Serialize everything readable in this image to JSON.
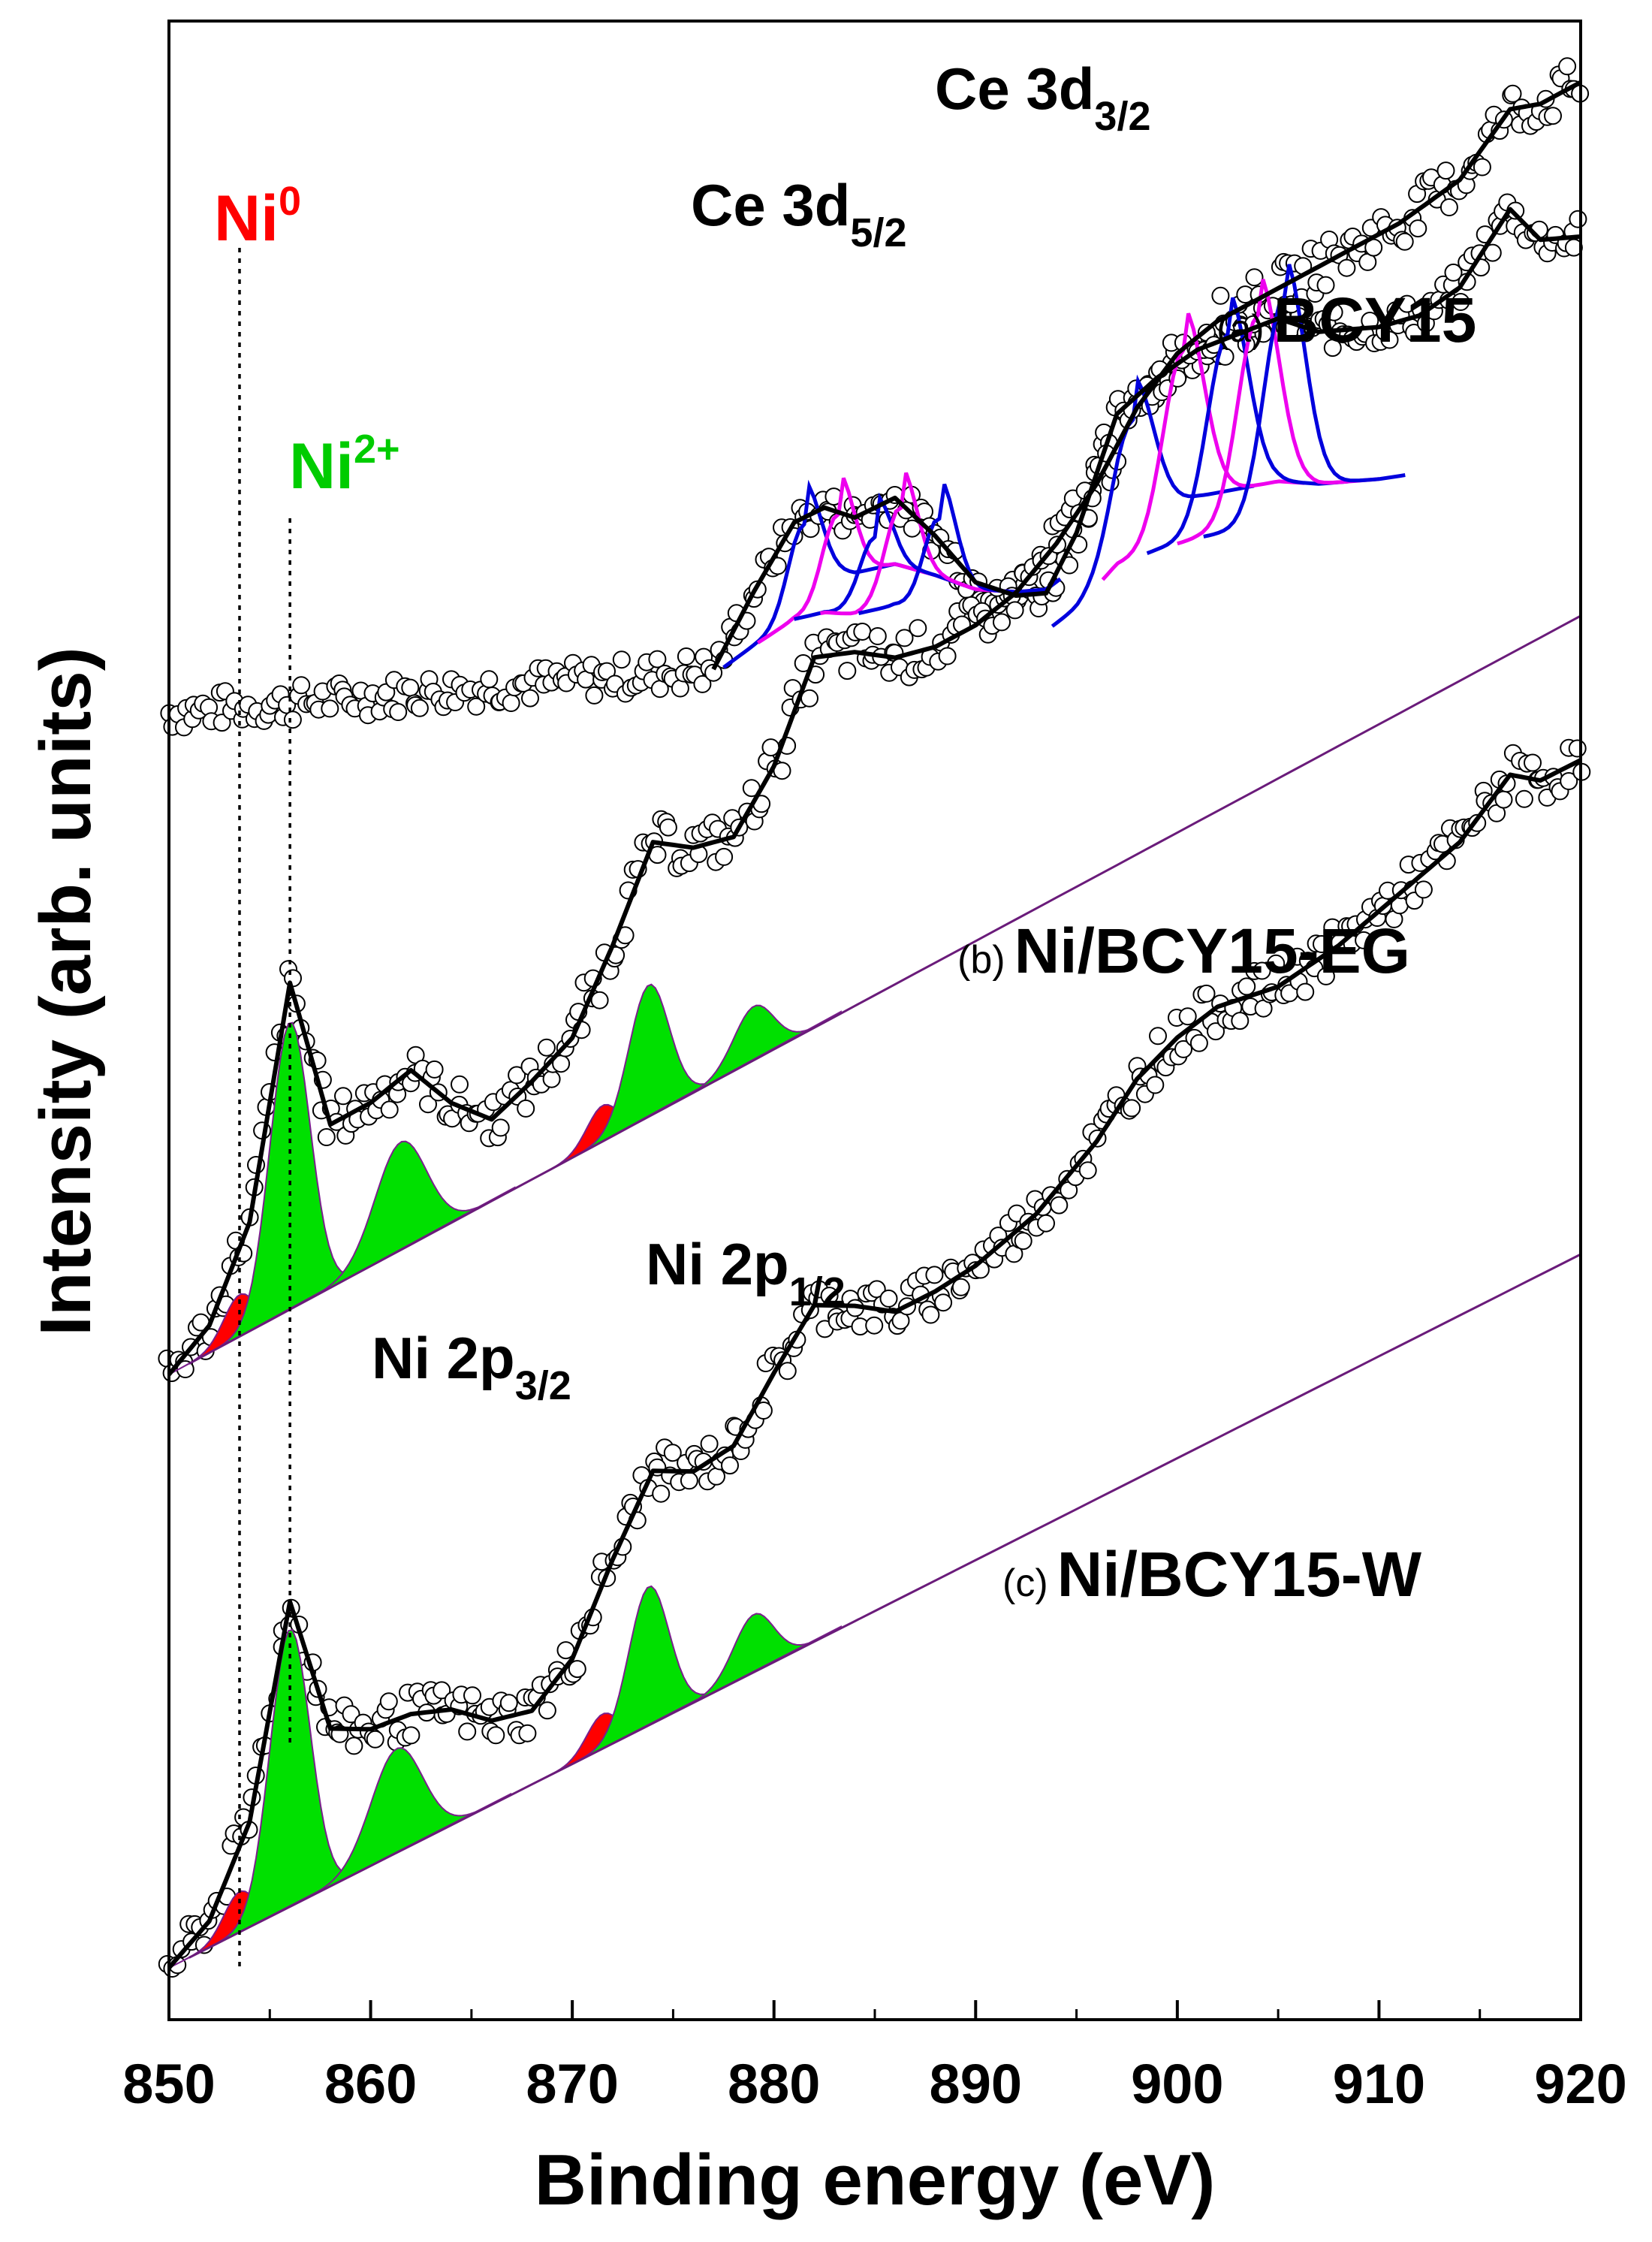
{
  "chart_data": {
    "type": "line",
    "title": "",
    "xlabel": "Binding energy (eV)",
    "ylabel": "Intensity (arb. units)",
    "xlim": [
      850,
      920
    ],
    "x_ticks": [
      "850",
      "860",
      "870",
      "880",
      "890",
      "900",
      "910",
      "920"
    ],
    "ytick_labels": false,
    "colors": {
      "ni0": "#ff0000",
      "ni2": "#00e000",
      "ce_a": "#0000dd",
      "ce_b": "#ee00ee",
      "fit": "#000000",
      "data_marker": "#ffffff"
    },
    "annotations": {
      "ni0": {
        "base": "Ni",
        "sup": "0",
        "x": 853.5
      },
      "ni2": {
        "base": "Ni",
        "sup": "2+",
        "x": 856.0
      },
      "ce5": {
        "base": "Ce 3d",
        "sub": "5/2"
      },
      "ce3": {
        "base": "Ce 3d",
        "sub": "3/2"
      },
      "ni3": {
        "base": "Ni 2p",
        "sub": "3/2"
      },
      "ni1": {
        "base": "Ni 2p",
        "sub": "1/2"
      }
    },
    "panels": [
      {
        "tag": "(a)",
        "name": "BCY15",
        "fit_x": [
          877,
          879,
          881,
          882.5,
          884,
          886,
          888,
          890,
          892,
          893.5,
          895,
          897,
          899,
          901,
          903,
          905,
          907,
          910,
          912,
          914,
          916.5,
          918,
          920
        ],
        "fit_y": [
          0.02,
          0.2,
          0.36,
          0.39,
          0.36,
          0.4,
          0.3,
          0.18,
          0.14,
          0.14,
          0.28,
          0.56,
          0.64,
          0.7,
          0.73,
          0.76,
          0.72,
          0.72,
          0.74,
          0.8,
          0.98,
          0.9,
          0.9
        ],
        "ce_peaks": [
          {
            "type": "ce_a",
            "center": 881.5,
            "height": 0.28
          },
          {
            "type": "ce_b",
            "center": 883.2,
            "height": 0.3
          },
          {
            "type": "ce_a",
            "center": 885.0,
            "height": 0.22
          },
          {
            "type": "ce_b",
            "center": 886.3,
            "height": 0.3
          },
          {
            "type": "ce_a",
            "center": 888.2,
            "height": 0.3
          },
          {
            "type": "ce_a",
            "center": 897.8,
            "height": 0.42
          },
          {
            "type": "ce_b",
            "center": 900.3,
            "height": 0.58
          },
          {
            "type": "ce_a",
            "center": 902.5,
            "height": 0.6
          },
          {
            "type": "ce_b",
            "center": 904.0,
            "height": 0.64
          },
          {
            "type": "ce_a",
            "center": 905.3,
            "height": 0.68
          }
        ]
      },
      {
        "tag": "(b)",
        "name": "Ni/BCY15-EG",
        "fit_x": [
          850,
          852,
          854,
          856,
          858,
          860,
          862,
          864,
          866,
          868,
          870,
          872,
          874,
          876,
          878,
          880,
          882,
          884,
          886,
          888,
          890,
          892,
          894,
          896,
          898,
          900,
          902,
          905,
          908,
          911,
          914,
          916.5,
          918,
          920
        ],
        "fit_y": [
          0.0,
          0.05,
          0.2,
          0.6,
          0.3,
          0.3,
          0.32,
          0.22,
          0.15,
          0.18,
          0.22,
          0.35,
          0.5,
          0.45,
          0.43,
          0.52,
          0.68,
          0.65,
          0.6,
          0.58,
          0.58,
          0.6,
          0.65,
          0.72,
          0.82,
          0.88,
          0.9,
          0.9,
          0.9,
          0.9,
          0.92,
          1.0,
          0.98,
          0.98
        ],
        "ni_peaks": [
          {
            "type": "ni0",
            "center": 853.5,
            "height": 0.07
          },
          {
            "type": "ni2",
            "center": 856.0,
            "height": 0.48
          },
          {
            "type": "ni2",
            "center": 861.5,
            "height": 0.18
          },
          {
            "type": "ni0",
            "center": 871.5,
            "height": 0.06
          },
          {
            "type": "ni2",
            "center": 873.8,
            "height": 0.22
          },
          {
            "type": "ni2",
            "center": 879.0,
            "height": 0.09
          }
        ]
      },
      {
        "tag": "(c)",
        "name": "Ni/BCY15-W",
        "fit_x": [
          850,
          852,
          854,
          856,
          858,
          860,
          862,
          864,
          866,
          868,
          870,
          872,
          874,
          876,
          878,
          880,
          882,
          884,
          886,
          888,
          890,
          893,
          896,
          898,
          900,
          902,
          905,
          908,
          911,
          914,
          916.5,
          918,
          920
        ],
        "fit_y": [
          0.0,
          0.05,
          0.2,
          0.58,
          0.3,
          0.26,
          0.25,
          0.22,
          0.16,
          0.14,
          0.2,
          0.35,
          0.48,
          0.44,
          0.45,
          0.55,
          0.64,
          0.6,
          0.55,
          0.55,
          0.56,
          0.6,
          0.68,
          0.76,
          0.8,
          0.82,
          0.8,
          0.82,
          0.86,
          0.9,
          0.98,
          0.94,
          0.94
        ],
        "ni_peaks": [
          {
            "type": "ni0",
            "center": 853.5,
            "height": 0.07
          },
          {
            "type": "ni2",
            "center": 856.0,
            "height": 0.48
          },
          {
            "type": "ni2",
            "center": 861.3,
            "height": 0.18
          },
          {
            "type": "ni0",
            "center": 871.5,
            "height": 0.06
          },
          {
            "type": "ni2",
            "center": 873.8,
            "height": 0.24
          },
          {
            "type": "ni2",
            "center": 879.0,
            "height": 0.1
          }
        ]
      }
    ]
  }
}
